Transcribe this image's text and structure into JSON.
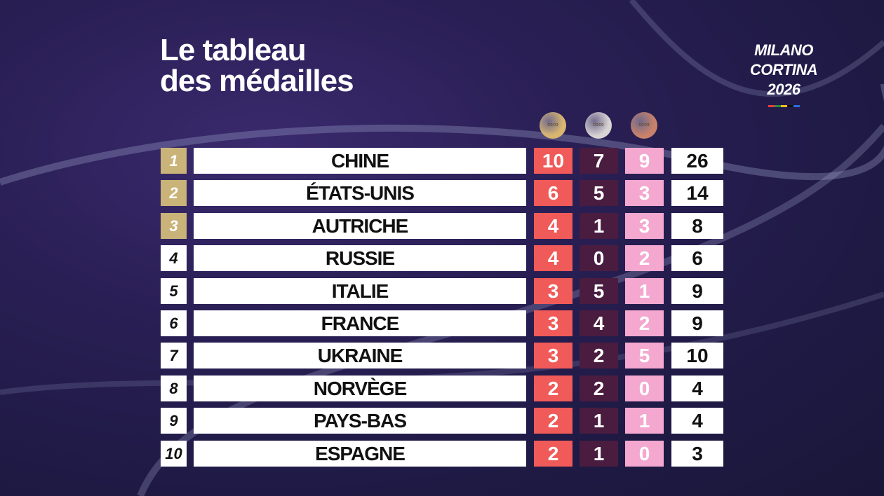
{
  "title": {
    "line1": "Le tableau",
    "line2": "des médailles"
  },
  "logo": {
    "line1": "MILANO",
    "line2": "CORTINA",
    "line3": "2026",
    "colors": [
      "#e63e3e",
      "#2e8b3e",
      "#f0c020",
      "#111111",
      "#2a6fd6"
    ]
  },
  "medals": [
    {
      "name": "gold-medal-icon",
      "color": "#d9b76e"
    },
    {
      "name": "silver-medal-icon",
      "color": "#d8d4d4"
    },
    {
      "name": "bronze-medal-icon",
      "color": "#c9826a"
    }
  ],
  "rows": [
    {
      "rank": "1",
      "country": "CHINE",
      "gold": "10",
      "silver": "7",
      "bronze": "9",
      "total": "26",
      "top": true
    },
    {
      "rank": "2",
      "country": "ÉTATS-UNIS",
      "gold": "6",
      "silver": "5",
      "bronze": "3",
      "total": "14",
      "top": true
    },
    {
      "rank": "3",
      "country": "AUTRICHE",
      "gold": "4",
      "silver": "1",
      "bronze": "3",
      "total": "8",
      "top": true
    },
    {
      "rank": "4",
      "country": "RUSSIE",
      "gold": "4",
      "silver": "0",
      "bronze": "2",
      "total": "6",
      "top": false
    },
    {
      "rank": "5",
      "country": "ITALIE",
      "gold": "3",
      "silver": "5",
      "bronze": "1",
      "total": "9",
      "top": false
    },
    {
      "rank": "6",
      "country": "FRANCE",
      "gold": "3",
      "silver": "4",
      "bronze": "2",
      "total": "9",
      "top": false
    },
    {
      "rank": "7",
      "country": "UKRAINE",
      "gold": "3",
      "silver": "2",
      "bronze": "5",
      "total": "10",
      "top": false
    },
    {
      "rank": "8",
      "country": "NORVÈGE",
      "gold": "2",
      "silver": "2",
      "bronze": "0",
      "total": "4",
      "top": false
    },
    {
      "rank": "9",
      "country": "PAYS-BAS",
      "gold": "2",
      "silver": "1",
      "bronze": "1",
      "total": "4",
      "top": false
    },
    {
      "rank": "10",
      "country": "ESPAGNE",
      "gold": "2",
      "silver": "1",
      "bronze": "0",
      "total": "3",
      "top": false
    }
  ]
}
